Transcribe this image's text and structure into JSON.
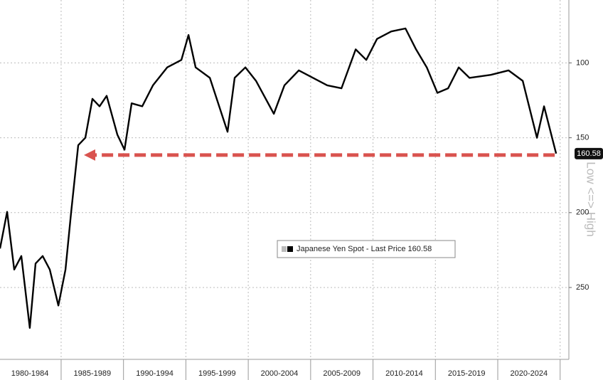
{
  "chart_data": {
    "type": "line",
    "axis_label": "Low <=> High",
    "categories": [
      "1980-1984",
      "1985-1989",
      "1990-1994",
      "1995-1999",
      "2000-2004",
      "2005-2009",
      "2010-2014",
      "2015-2019",
      "2020-2024"
    ],
    "xlim": [
      1980.1,
      2025.7
    ],
    "xticks": [
      1980,
      1985,
      1990,
      1995,
      2000,
      2005,
      2010,
      2015,
      2020,
      2025
    ],
    "ylim": [
      298,
      58
    ],
    "yticks": [
      100,
      150,
      200,
      250
    ],
    "grid": true,
    "legend": "center",
    "last_value_label": "160.58",
    "series": [
      {
        "name": "Japanese Yen Spot - Last Price 160.58",
        "color": "#000000",
        "x": [
          1980.1,
          1980.67,
          1981.24,
          1981.81,
          1982.49,
          1982.95,
          1983.52,
          1984.09,
          1984.78,
          1985.35,
          1985.8,
          1986.37,
          1986.94,
          1987.51,
          1988.08,
          1988.65,
          1989.51,
          1990.08,
          1990.65,
          1991.5,
          1992.36,
          1993.5,
          1994.64,
          1995.21,
          1995.78,
          1996.92,
          1998.34,
          1998.91,
          1999.77,
          2000.62,
          2002.05,
          2002.9,
          2004.05,
          2005.19,
          2006.33,
          2007.47,
          2008.61,
          2009.46,
          2010.32,
          2011.46,
          2012.6,
          2013.45,
          2014.31,
          2015.16,
          2016.02,
          2016.87,
          2017.73,
          2019.44,
          2020.86,
          2022.0,
          2023.14,
          2023.71,
          2024.68
        ],
        "values": [
          224,
          199.5,
          238,
          229,
          277,
          234,
          229,
          238,
          262,
          238,
          200,
          155,
          150,
          124,
          129,
          122,
          148,
          158,
          127,
          129,
          115,
          103,
          98,
          81.4,
          103,
          110,
          146,
          110,
          103,
          112,
          134,
          115,
          105,
          110,
          115,
          117,
          91,
          98,
          84,
          79,
          77,
          91,
          103,
          120,
          117,
          103,
          110,
          108,
          105,
          112,
          150,
          129,
          160.58
        ]
      }
    ]
  }
}
